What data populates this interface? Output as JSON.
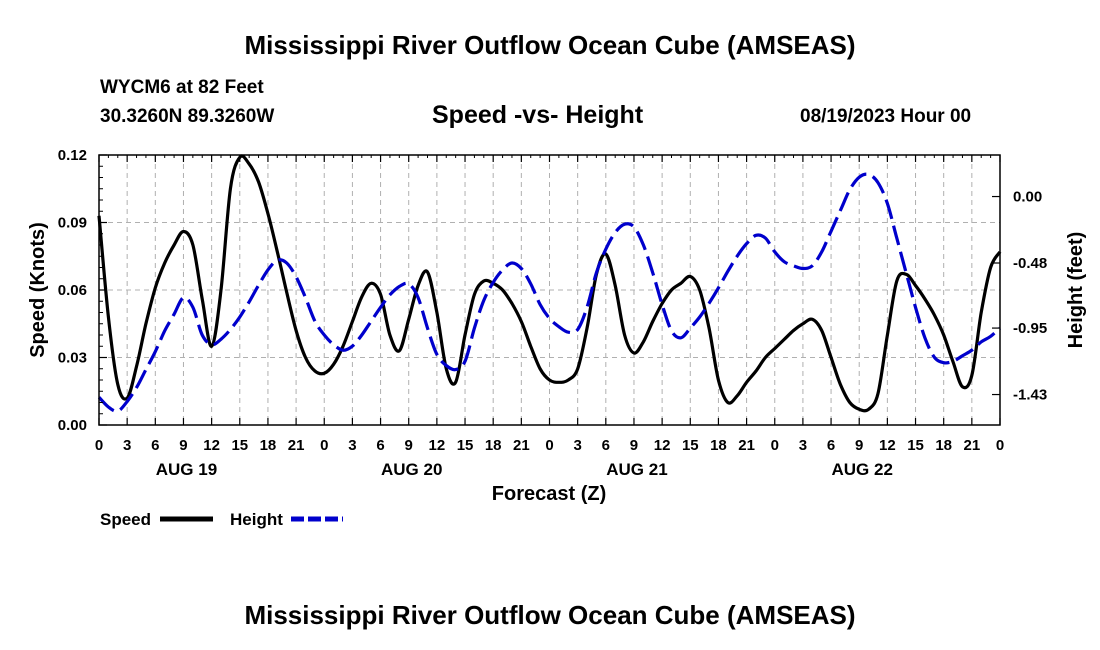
{
  "header": {
    "main_title": "Mississippi River Outflow Ocean Cube (AMSEAS)",
    "station": "WYCM6 at 82 Feet",
    "coordinates": "30.3260N  89.3260W",
    "subtitle": "Speed -vs- Height",
    "run_time": "08/19/2023 Hour 00"
  },
  "footer": {
    "repeated_title": "Mississippi River Outflow Ocean Cube (AMSEAS)"
  },
  "chart_data": {
    "type": "line",
    "title": "Speed -vs- Height",
    "xlabel": "Forecast (Z)",
    "ylabel": "Speed (Knots)",
    "y2label": "Height (feet)",
    "x_range_hours": [
      0,
      96
    ],
    "x_tick_labels": [
      "0",
      "3",
      "6",
      "9",
      "12",
      "15",
      "18",
      "21",
      "0",
      "3",
      "6",
      "9",
      "12",
      "15",
      "18",
      "21",
      "0",
      "3",
      "6",
      "9",
      "12",
      "15",
      "18",
      "21",
      "0",
      "3",
      "6",
      "9",
      "12",
      "15",
      "18",
      "21",
      "0"
    ],
    "day_labels": [
      {
        "hour": 9,
        "label": "AUG 19"
      },
      {
        "hour": 33,
        "label": "AUG 20"
      },
      {
        "hour": 57,
        "label": "AUG 21"
      },
      {
        "hour": 81,
        "label": "AUG 22"
      }
    ],
    "ylim": [
      0,
      0.12
    ],
    "yticks": [
      "0.00",
      "0.03",
      "0.06",
      "0.09",
      "0.12"
    ],
    "y2lim": [
      -1.65,
      0.3
    ],
    "y2ticks": [
      {
        "value": 0.0,
        "label": "0.00"
      },
      {
        "value": -0.48,
        "label": "-0.48"
      },
      {
        "value": -0.95,
        "label": "-0.95"
      },
      {
        "value": -1.43,
        "label": "-1.43"
      }
    ],
    "grid": true,
    "legend_position": "bottom-left",
    "series": [
      {
        "name": "Speed",
        "axis": "left",
        "color": "#000000",
        "style": "solid",
        "x": [
          0,
          1,
          2,
          3,
          4,
          5,
          6,
          7,
          8,
          9,
          10,
          11,
          12,
          13,
          14,
          15,
          16,
          17,
          18,
          19,
          20,
          21,
          22,
          23,
          24,
          25,
          26,
          27,
          28,
          29,
          30,
          31,
          32,
          33,
          34,
          35,
          36,
          37,
          38,
          39,
          40,
          41,
          42,
          43,
          44,
          45,
          46,
          47,
          48,
          49,
          50,
          51,
          52,
          53,
          54,
          55,
          56,
          57,
          58,
          59,
          60,
          61,
          62,
          63,
          64,
          65,
          66,
          67,
          68,
          69,
          70,
          71,
          72,
          73,
          74,
          75,
          76,
          77,
          78,
          79,
          80,
          81,
          82,
          83,
          84,
          85,
          86,
          87,
          88,
          89,
          90,
          91,
          92,
          93,
          94,
          95,
          96
        ],
        "values": [
          0.093,
          0.048,
          0.018,
          0.012,
          0.026,
          0.045,
          0.061,
          0.072,
          0.08,
          0.086,
          0.08,
          0.056,
          0.035,
          0.06,
          0.105,
          0.119,
          0.116,
          0.108,
          0.094,
          0.077,
          0.059,
          0.042,
          0.03,
          0.024,
          0.023,
          0.027,
          0.035,
          0.046,
          0.057,
          0.063,
          0.058,
          0.04,
          0.033,
          0.047,
          0.062,
          0.068,
          0.05,
          0.025,
          0.019,
          0.04,
          0.058,
          0.064,
          0.063,
          0.06,
          0.054,
          0.046,
          0.035,
          0.025,
          0.02,
          0.019,
          0.02,
          0.025,
          0.043,
          0.067,
          0.076,
          0.062,
          0.04,
          0.032,
          0.037,
          0.046,
          0.054,
          0.06,
          0.063,
          0.066,
          0.06,
          0.043,
          0.02,
          0.01,
          0.013,
          0.019,
          0.024,
          0.03,
          0.034,
          0.038,
          0.042,
          0.045,
          0.047,
          0.042,
          0.03,
          0.018,
          0.01,
          0.007,
          0.007,
          0.014,
          0.04,
          0.064,
          0.067,
          0.062,
          0.056,
          0.049,
          0.04,
          0.028,
          0.017,
          0.022,
          0.05,
          0.07,
          0.077
        ]
      },
      {
        "name": "Height",
        "axis": "right",
        "color": "#0000cc",
        "style": "dashed",
        "x": [
          0,
          1,
          2,
          3,
          4,
          5,
          6,
          7,
          8,
          9,
          10,
          11,
          12,
          13,
          14,
          15,
          16,
          17,
          18,
          19,
          20,
          21,
          22,
          23,
          24,
          25,
          26,
          27,
          28,
          29,
          30,
          31,
          32,
          33,
          34,
          35,
          36,
          37,
          38,
          39,
          40,
          41,
          42,
          43,
          44,
          45,
          46,
          47,
          48,
          49,
          50,
          51,
          52,
          53,
          54,
          55,
          56,
          57,
          58,
          59,
          60,
          61,
          62,
          63,
          64,
          65,
          66,
          67,
          68,
          69,
          70,
          71,
          72,
          73,
          74,
          75,
          76,
          77,
          78,
          79,
          80,
          81,
          82,
          83,
          84,
          85,
          86,
          87,
          88,
          89,
          90,
          91,
          92,
          93,
          94,
          95,
          96
        ],
        "values": [
          -1.45,
          -1.52,
          -1.55,
          -1.48,
          -1.38,
          -1.25,
          -1.12,
          -0.97,
          -0.85,
          -0.73,
          -0.8,
          -1.0,
          -1.07,
          -1.03,
          -0.96,
          -0.87,
          -0.76,
          -0.64,
          -0.53,
          -0.46,
          -0.48,
          -0.58,
          -0.73,
          -0.9,
          -1.0,
          -1.07,
          -1.11,
          -1.08,
          -1.0,
          -0.9,
          -0.8,
          -0.71,
          -0.65,
          -0.63,
          -0.73,
          -0.95,
          -1.14,
          -1.22,
          -1.25,
          -1.19,
          -0.95,
          -0.75,
          -0.62,
          -0.53,
          -0.48,
          -0.52,
          -0.63,
          -0.78,
          -0.88,
          -0.94,
          -0.98,
          -0.96,
          -0.8,
          -0.55,
          -0.38,
          -0.26,
          -0.2,
          -0.22,
          -0.35,
          -0.55,
          -0.78,
          -0.97,
          -1.02,
          -0.95,
          -0.87,
          -0.77,
          -0.66,
          -0.54,
          -0.43,
          -0.34,
          -0.28,
          -0.3,
          -0.4,
          -0.47,
          -0.5,
          -0.52,
          -0.5,
          -0.4,
          -0.25,
          -0.1,
          0.05,
          0.14,
          0.16,
          0.1,
          -0.05,
          -0.3,
          -0.55,
          -0.8,
          -1.02,
          -1.16,
          -1.2,
          -1.19,
          -1.15,
          -1.11,
          -1.05,
          -1.01,
          -0.95
        ]
      }
    ]
  }
}
